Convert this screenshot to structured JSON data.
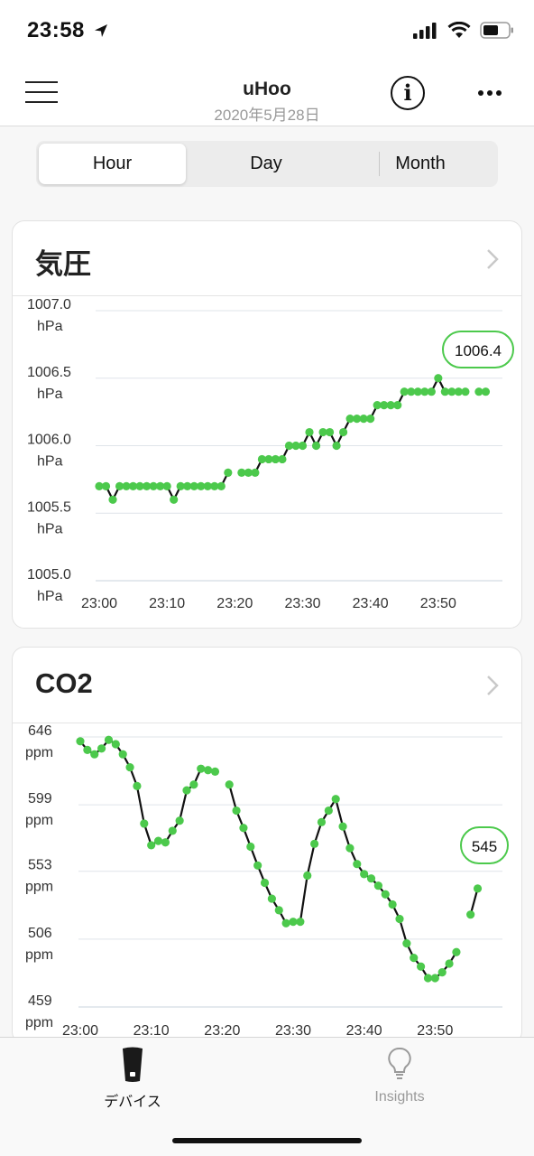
{
  "status_bar": {
    "time": "23:58"
  },
  "nav": {
    "title": "uHoo",
    "subtitle": "2020年5月28日"
  },
  "segments": {
    "hour": "Hour",
    "day": "Day",
    "month": "Month",
    "selected": "Hour"
  },
  "pressure": {
    "title": "気圧",
    "chart_data": {
      "type": "line",
      "x_tick_labels": [
        "23:00",
        "23:10",
        "23:20",
        "23:30",
        "23:40",
        "23:50"
      ],
      "y_tick_values": [
        "1007.0",
        "1006.5",
        "1006.0",
        "1005.5",
        "1005.0"
      ],
      "y_unit": "hPa",
      "ylim": [
        1005.0,
        1007.0
      ],
      "xlim_minutes": [
        0,
        60
      ],
      "callout": "1006.4",
      "series_color": "#4cc94c",
      "x": [
        0,
        1,
        2,
        3,
        4,
        5,
        6,
        7,
        8,
        9,
        10,
        11,
        12,
        13,
        14,
        15,
        16,
        17,
        18,
        19,
        20,
        21,
        22,
        23,
        24,
        25,
        26,
        27,
        28,
        29,
        30,
        31,
        32,
        33,
        34,
        35,
        36,
        37,
        38,
        39,
        40,
        41,
        42,
        43,
        44,
        45,
        46,
        47,
        48,
        49,
        50,
        51,
        52,
        53,
        54,
        56,
        57
      ],
      "values": [
        1005.7,
        1005.7,
        1005.6,
        1005.7,
        1005.7,
        1005.7,
        1005.7,
        1005.7,
        1005.7,
        1005.7,
        1005.7,
        1005.6,
        1005.7,
        1005.7,
        1005.7,
        1005.7,
        1005.7,
        1005.7,
        1005.7,
        1005.8,
        null,
        1005.8,
        1005.8,
        1005.8,
        1005.9,
        1005.9,
        1005.9,
        1005.9,
        1006.0,
        1006.0,
        1006.0,
        1006.1,
        1006.0,
        1006.1,
        1006.1,
        1006.0,
        1006.1,
        1006.2,
        1006.2,
        1006.2,
        1006.2,
        1006.3,
        1006.3,
        1006.3,
        1006.3,
        1006.4,
        1006.4,
        1006.4,
        1006.4,
        1006.4,
        1006.5,
        1006.4,
        1006.4,
        1006.4,
        1006.4,
        1006.4,
        1006.4
      ]
    }
  },
  "co2": {
    "title": "CO2",
    "chart_data": {
      "type": "line",
      "x_tick_labels": [
        "23:00",
        "23:10",
        "23:20",
        "23:30",
        "23:40",
        "23:50"
      ],
      "y_tick_values": [
        "646",
        "599",
        "553",
        "506",
        "459"
      ],
      "y_unit": "ppm",
      "ylim": [
        459,
        646
      ],
      "xlim_minutes": [
        0,
        60
      ],
      "callout": "545",
      "series_color": "#4cc94c",
      "x": [
        0,
        1,
        2,
        3,
        4,
        5,
        6,
        7,
        8,
        9,
        10,
        11,
        12,
        13,
        14,
        15,
        16,
        17,
        18,
        19,
        21,
        22,
        23,
        24,
        25,
        26,
        27,
        28,
        29,
        30,
        31,
        32,
        33,
        34,
        35,
        36,
        37,
        38,
        39,
        40,
        41,
        42,
        43,
        44,
        45,
        46,
        47,
        48,
        49,
        50,
        51,
        52,
        53,
        55,
        56
      ],
      "values": [
        643,
        637,
        634,
        638,
        644,
        641,
        634,
        625,
        612,
        586,
        571,
        574,
        573,
        581,
        588,
        609,
        613,
        624,
        623,
        622,
        613,
        595,
        583,
        570,
        557,
        545,
        534,
        526,
        517,
        518,
        518,
        550,
        572,
        587,
        595,
        603,
        584,
        569,
        558,
        551,
        548,
        543,
        537,
        530,
        520,
        503,
        493,
        487,
        479,
        479,
        483,
        489,
        497,
        523,
        541
      ]
    }
  },
  "tabs": {
    "devices": "デバイス",
    "insights": "Insights"
  },
  "colors": {
    "accent_green": "#4cc94c",
    "line": "#111111",
    "grid": "#dfe4ea"
  }
}
